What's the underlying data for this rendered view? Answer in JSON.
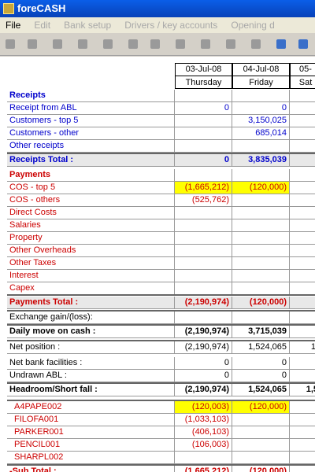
{
  "title_bar": {
    "title": "foreCASH"
  },
  "menu": [
    "File",
    "Edit",
    "Bank setup",
    "Drivers / key accounts",
    "Opening d"
  ],
  "columns": [
    {
      "date": "03-Jul-08",
      "day": "Thursday"
    },
    {
      "date": "04-Jul-08",
      "day": "Friday"
    },
    {
      "date": "05-",
      "day": "Sat"
    }
  ],
  "rows": [
    {
      "label": "Receipts",
      "v": [
        "",
        "",
        ""
      ],
      "style": "blue bold",
      "bg": ""
    },
    {
      "label": "Receipt from ABL",
      "v": [
        "0",
        "0",
        ""
      ],
      "style": "blue",
      "bg": ""
    },
    {
      "label": "Customers - top 5",
      "v": [
        "",
        "3,150,025",
        ""
      ],
      "style": "blue",
      "bg": ""
    },
    {
      "label": "Customers - other",
      "v": [
        "",
        "685,014",
        ""
      ],
      "style": "blue",
      "bg": ""
    },
    {
      "label": "Other receipts",
      "v": [
        "",
        "",
        ""
      ],
      "style": "blue",
      "bg": ""
    },
    {
      "label": "Receipts Total :",
      "v": [
        "0",
        "3,835,039",
        ""
      ],
      "style": "blue bold",
      "bg": "gry"
    },
    {
      "label": "Payments",
      "v": [
        "",
        "",
        ""
      ],
      "style": "red bold",
      "bg": ""
    },
    {
      "label": "COS - top 5",
      "v": [
        "(1,665,212)",
        "(120,000)",
        ""
      ],
      "style": "red",
      "bg": "yel"
    },
    {
      "label": "COS - others",
      "v": [
        "(525,762)",
        "",
        ""
      ],
      "style": "red",
      "bg": ""
    },
    {
      "label": "Direct Costs",
      "v": [
        "",
        "",
        ""
      ],
      "style": "red",
      "bg": ""
    },
    {
      "label": "Salaries",
      "v": [
        "",
        "",
        ""
      ],
      "style": "red",
      "bg": ""
    },
    {
      "label": "Property",
      "v": [
        "",
        "",
        ""
      ],
      "style": "red",
      "bg": ""
    },
    {
      "label": "Other Overheads",
      "v": [
        "",
        "",
        ""
      ],
      "style": "red",
      "bg": ""
    },
    {
      "label": "Other Taxes",
      "v": [
        "",
        "",
        ""
      ],
      "style": "red",
      "bg": ""
    },
    {
      "label": "Interest",
      "v": [
        "",
        "",
        ""
      ],
      "style": "red",
      "bg": ""
    },
    {
      "label": "Capex",
      "v": [
        "",
        "",
        ""
      ],
      "style": "red",
      "bg": ""
    },
    {
      "label": "Payments Total :",
      "v": [
        "(2,190,974)",
        "(120,000)",
        ""
      ],
      "style": "red bold",
      "bg": "gry"
    },
    {
      "label": "Exchange gain/(loss):",
      "v": [
        "",
        "",
        ""
      ],
      "style": "",
      "bg": ""
    },
    {
      "label": "Daily move on cash :",
      "v": [
        "(2,190,974)",
        "3,715,039",
        ""
      ],
      "style": "bold",
      "bg": ""
    },
    {
      "label": "Net position :",
      "v": [
        "(2,190,974)",
        "1,524,065",
        "1,"
      ],
      "style": "",
      "bg": ""
    },
    {
      "label": "Net bank facilities :",
      "v": [
        "0",
        "0",
        ""
      ],
      "style": "",
      "bg": ""
    },
    {
      "label": "Undrawn ABL :",
      "v": [
        "0",
        "0",
        ""
      ],
      "style": "",
      "bg": ""
    },
    {
      "label": "Headroom/Short fall :",
      "v": [
        "(2,190,974)",
        "1,524,065",
        "1,5"
      ],
      "style": "bold",
      "bg": ""
    },
    {
      "label": "A4PAPE002",
      "v": [
        "(120,003)",
        "(120,000)",
        ""
      ],
      "style": "red indent",
      "bg": "yel"
    },
    {
      "label": "FILOFA001",
      "v": [
        "(1,033,103)",
        "",
        ""
      ],
      "style": "red indent",
      "bg": ""
    },
    {
      "label": "PARKER001",
      "v": [
        "(406,103)",
        "",
        ""
      ],
      "style": "red indent",
      "bg": ""
    },
    {
      "label": "PENCIL001",
      "v": [
        "(106,003)",
        "",
        ""
      ],
      "style": "red indent",
      "bg": ""
    },
    {
      "label": "SHARPL002",
      "v": [
        "",
        "",
        ""
      ],
      "style": "red indent",
      "bg": ""
    },
    {
      "label": "-Sub Total :",
      "v": [
        "(1,665,212)",
        "(120,000)",
        ""
      ],
      "style": "red bold",
      "bg": ""
    }
  ]
}
